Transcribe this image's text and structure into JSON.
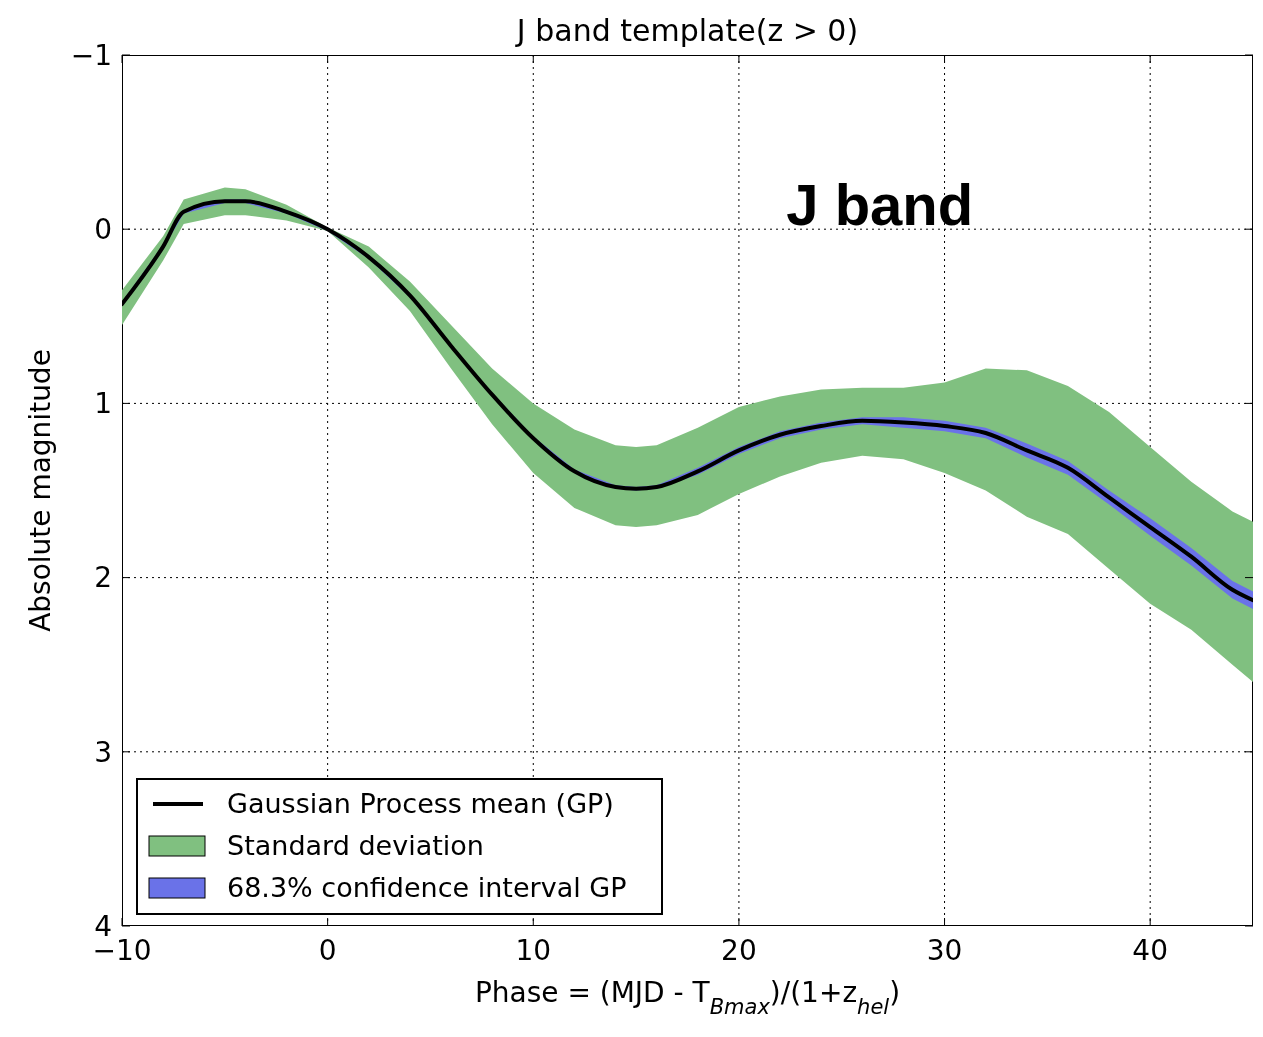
{
  "chart_data": {
    "type": "line",
    "title": "J band template(z > 0)",
    "xlabel": "Phase = (MJD - T$_{Bmax}$)/(1+z$_{hel}$)",
    "ylabel": "Absolute magnitude",
    "annotations": [
      "J band"
    ],
    "x": [
      -10,
      -8,
      -7,
      -5,
      -4,
      -2,
      0,
      2,
      4,
      6,
      8,
      10,
      12,
      14,
      15,
      16,
      18,
      20,
      22,
      24,
      26,
      28,
      30,
      32,
      34,
      36,
      38,
      40,
      42,
      44,
      45
    ],
    "series": [
      {
        "name": "Gaussian Process mean (GP)",
        "color": "#000000",
        "values": [
          0.43,
          0.1,
          -0.1,
          -0.16,
          -0.16,
          -0.1,
          0,
          0.16,
          0.38,
          0.67,
          0.95,
          1.2,
          1.39,
          1.48,
          1.49,
          1.48,
          1.39,
          1.27,
          1.18,
          1.13,
          1.1,
          1.11,
          1.13,
          1.17,
          1.27,
          1.37,
          1.54,
          1.71,
          1.88,
          2.07,
          2.13
        ]
      },
      {
        "name": "Standard deviation",
        "color": "#80c080",
        "values": [
          null,
          null,
          null,
          null,
          null,
          null,
          null,
          null,
          null,
          null,
          null,
          null,
          null,
          null,
          null,
          null,
          null,
          null,
          null,
          null,
          null,
          null,
          null,
          null,
          null,
          null,
          null,
          null,
          null,
          null,
          null
        ],
        "lower": [
          0.35,
          0.04,
          -0.17,
          -0.24,
          -0.23,
          -0.14,
          -0.01,
          0.1,
          0.3,
          0.55,
          0.8,
          1.0,
          1.15,
          1.24,
          1.25,
          1.24,
          1.14,
          1.02,
          0.96,
          0.92,
          0.91,
          0.91,
          0.88,
          0.8,
          0.81,
          0.9,
          1.05,
          1.25,
          1.45,
          1.62,
          1.68
        ],
        "upper": [
          0.55,
          0.18,
          -0.03,
          -0.08,
          -0.08,
          -0.05,
          0.01,
          0.22,
          0.47,
          0.8,
          1.12,
          1.4,
          1.6,
          1.7,
          1.71,
          1.7,
          1.64,
          1.52,
          1.42,
          1.34,
          1.3,
          1.32,
          1.4,
          1.5,
          1.65,
          1.75,
          1.95,
          2.15,
          2.3,
          2.5,
          2.6
        ]
      },
      {
        "name": "68.3% confidence interval GP",
        "color": "#6a72e8",
        "values": [
          null,
          null,
          null,
          null,
          null,
          null,
          null,
          null,
          null,
          null,
          null,
          null,
          null,
          null,
          null,
          null,
          null,
          null,
          null,
          null,
          null,
          null,
          null,
          null,
          null,
          null,
          null,
          null,
          null,
          null,
          null
        ],
        "lower": [
          0.42,
          0.09,
          -0.11,
          -0.17,
          -0.17,
          -0.11,
          -0.01,
          0.15,
          0.37,
          0.66,
          0.94,
          1.19,
          1.38,
          1.47,
          1.48,
          1.47,
          1.37,
          1.25,
          1.16,
          1.11,
          1.08,
          1.08,
          1.1,
          1.14,
          1.23,
          1.33,
          1.5,
          1.66,
          1.83,
          2.02,
          2.08
        ],
        "upper": [
          0.44,
          0.11,
          -0.09,
          -0.15,
          -0.15,
          -0.09,
          0.01,
          0.17,
          0.39,
          0.68,
          0.96,
          1.21,
          1.4,
          1.49,
          1.5,
          1.49,
          1.41,
          1.29,
          1.2,
          1.15,
          1.12,
          1.14,
          1.16,
          1.2,
          1.31,
          1.41,
          1.58,
          1.76,
          1.93,
          2.12,
          2.18
        ]
      }
    ],
    "xlim": [
      -10,
      45
    ],
    "xticks": [
      {
        "value": -10,
        "label": "−10"
      },
      0,
      10,
      20,
      30,
      40
    ],
    "ylim": [
      4,
      -1
    ],
    "yticks": [
      {
        "value": -1,
        "label": "−1"
      },
      0,
      1,
      2,
      3,
      4
    ],
    "grid": true,
    "legend": "bottom left",
    "line_style": "solid"
  }
}
